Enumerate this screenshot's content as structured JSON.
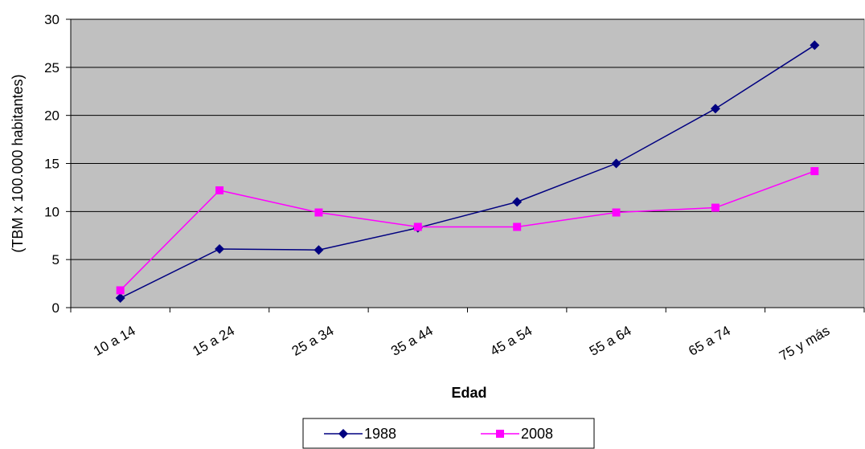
{
  "chart_data": {
    "type": "line",
    "categories": [
      "10 a 14",
      "15 a 24",
      "25 a 34",
      "35 a 44",
      "45 a 54",
      "55 a 64",
      "65 a 74",
      "75 y más"
    ],
    "series": [
      {
        "name": "1988",
        "values": [
          1.0,
          6.1,
          6.0,
          8.3,
          11.0,
          15.0,
          20.7,
          27.3
        ],
        "color": "#000080",
        "marker": "diamond"
      },
      {
        "name": "2008",
        "values": [
          1.8,
          12.2,
          9.9,
          8.4,
          8.4,
          9.9,
          10.4,
          14.2
        ],
        "color": "#ff00ff",
        "marker": "square"
      }
    ],
    "xlabel": "Edad",
    "ylabel": "(TBM x 100.000 habitantes)",
    "ylim": [
      0,
      30
    ],
    "yticks": [
      0,
      5,
      10,
      15,
      20,
      25,
      30
    ],
    "grid": true,
    "plot_background": "#c0c0c0",
    "legend_position": "bottom"
  }
}
